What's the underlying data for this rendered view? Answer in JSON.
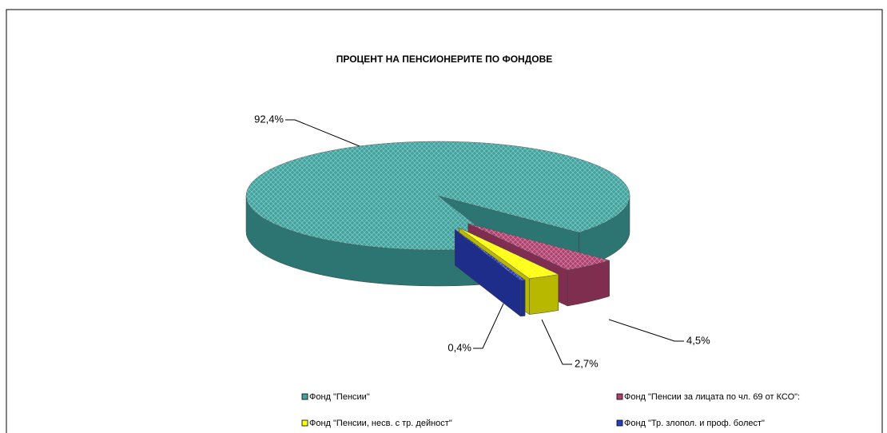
{
  "chart_data": {
    "type": "pie3d",
    "title": "ПРОЦЕНТ НА ПЕНСИОНЕРИТЕ ПО ФОНДОВЕ",
    "categories": [
      "Фонд \"Пенсии\"",
      "Фонд \"Пенсии за лицата по чл. 69 от КСО\":",
      "Фонд \"Пенсии, несв. с тр. дейност\"",
      "Фонд \"Тр. злопол. и проф. болест\""
    ],
    "values": [
      92.4,
      4.5,
      2.7,
      0.4
    ],
    "value_labels": [
      "92,4%",
      "4,5%",
      "2,7%",
      "0,4%"
    ],
    "colors": [
      "#3fa39e",
      "#b0406e",
      "#ffff00",
      "#2a3fbf"
    ]
  }
}
